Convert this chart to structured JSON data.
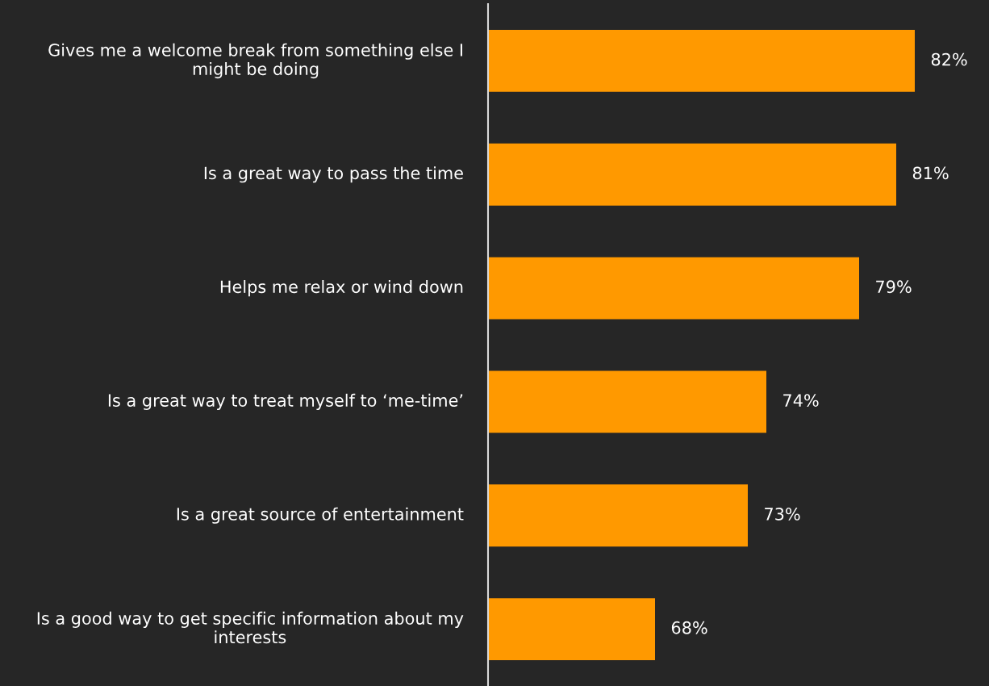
{
  "chart_data": {
    "type": "bar",
    "orientation": "horizontal",
    "categories": [
      "Gives me a welcome break from something else I might be doing",
      "Is a great way to pass the time",
      "Helps me relax or wind down",
      "Is a great way to treat myself to ‘me-time’",
      "Is a great source of entertainment",
      "Is a good way to get specific information about my interests"
    ],
    "values": [
      82,
      81,
      79,
      74,
      73,
      68
    ],
    "color": "#ff9900",
    "xlim": [
      59,
      86
    ],
    "data_labels": true,
    "value_labels": [
      "82%",
      "81%",
      "79%",
      "74%",
      "73%",
      "68%"
    ],
    "tick_labels": "y"
  }
}
